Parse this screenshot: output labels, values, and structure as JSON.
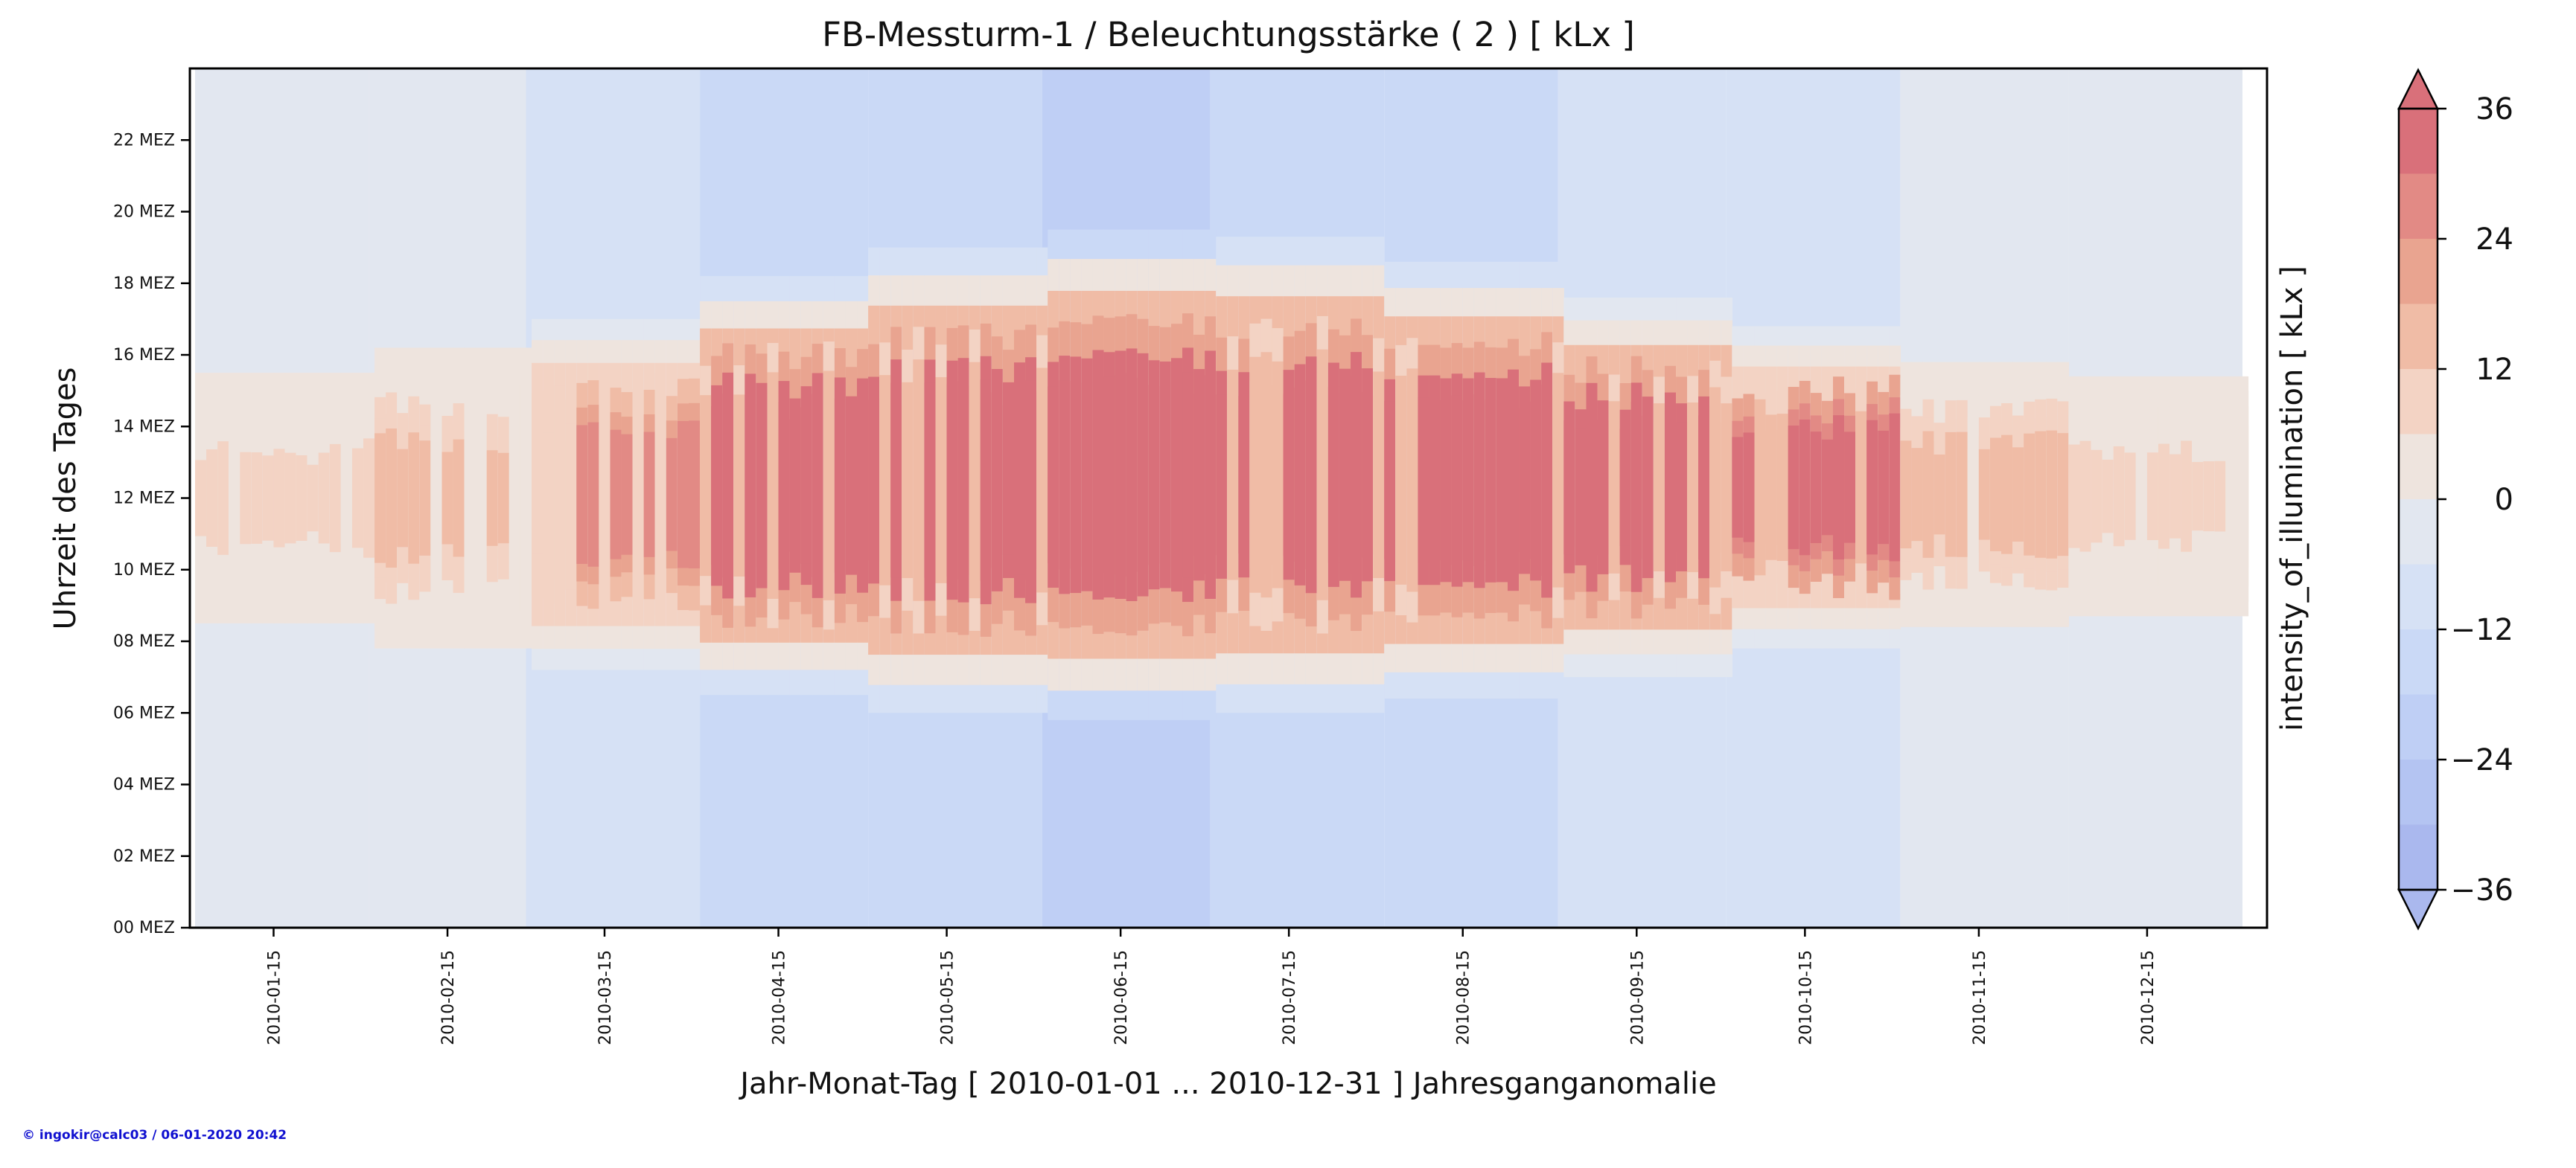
{
  "chart_data": {
    "type": "heatmap",
    "title": "FB-Messturm-1 / Beleuchtungsstärke ( 2 ) [ kLx ]",
    "xlabel": "Jahr-Monat-Tag [ 2010-01-01 ... 2010-12-31 ] Jahresganganomalie",
    "ylabel": "Uhrzeit des Tages",
    "x_range": [
      "2010-01-01",
      "2010-12-31"
    ],
    "x_ticks": [
      "2010-01-15",
      "2010-02-15",
      "2010-03-15",
      "2010-04-15",
      "2010-05-15",
      "2010-06-15",
      "2010-07-15",
      "2010-08-15",
      "2010-09-15",
      "2010-10-15",
      "2010-11-15",
      "2010-12-15"
    ],
    "y_range": [
      0,
      24
    ],
    "y_ticks": [
      "00 MEZ",
      "02 MEZ",
      "04 MEZ",
      "06 MEZ",
      "08 MEZ",
      "10 MEZ",
      "12 MEZ",
      "14 MEZ",
      "16 MEZ",
      "18 MEZ",
      "20 MEZ",
      "22 MEZ"
    ],
    "colorbar": {
      "label": "intensity_of_illumination [ kLx ]",
      "ticks": [
        "36",
        "24",
        "12",
        "0",
        "−12",
        "−24",
        "−36"
      ],
      "range": [
        -36,
        36
      ],
      "levels": [
        -36,
        -30,
        -24,
        -18,
        -12,
        -6,
        0,
        6,
        12,
        18,
        24,
        30,
        36
      ],
      "colors": [
        "#aab8ee",
        "#b4c4f2",
        "#bfcff5",
        "#cad9f6",
        "#d6e1f5",
        "#e2e7f0",
        "#eee4de",
        "#f3d3c4",
        "#f0bca6",
        "#e9a490",
        "#e28a85",
        "#d9707a"
      ],
      "extend": "both"
    },
    "monthly_night_anomaly_kLx": [
      -4,
      -6,
      -10,
      -18,
      -18,
      -24,
      -18,
      -18,
      -12,
      -10,
      -4,
      -4
    ],
    "daytime_peak_anomaly_kLx": [
      6,
      12,
      24,
      36,
      36,
      36,
      36,
      36,
      36,
      30,
      12,
      6
    ],
    "daylight_hours_start_end": [
      [
        8.5,
        15.5
      ],
      [
        7.8,
        16.2
      ],
      [
        7.2,
        17.0
      ],
      [
        6.5,
        18.2
      ],
      [
        6.0,
        19.0
      ],
      [
        5.8,
        19.5
      ],
      [
        6.0,
        19.3
      ],
      [
        6.4,
        18.6
      ],
      [
        7.0,
        17.6
      ],
      [
        7.8,
        16.8
      ],
      [
        8.4,
        15.8
      ],
      [
        8.7,
        15.4
      ]
    ]
  },
  "credit": "© ingokir@calc03 / 06-01-2020 20:42"
}
